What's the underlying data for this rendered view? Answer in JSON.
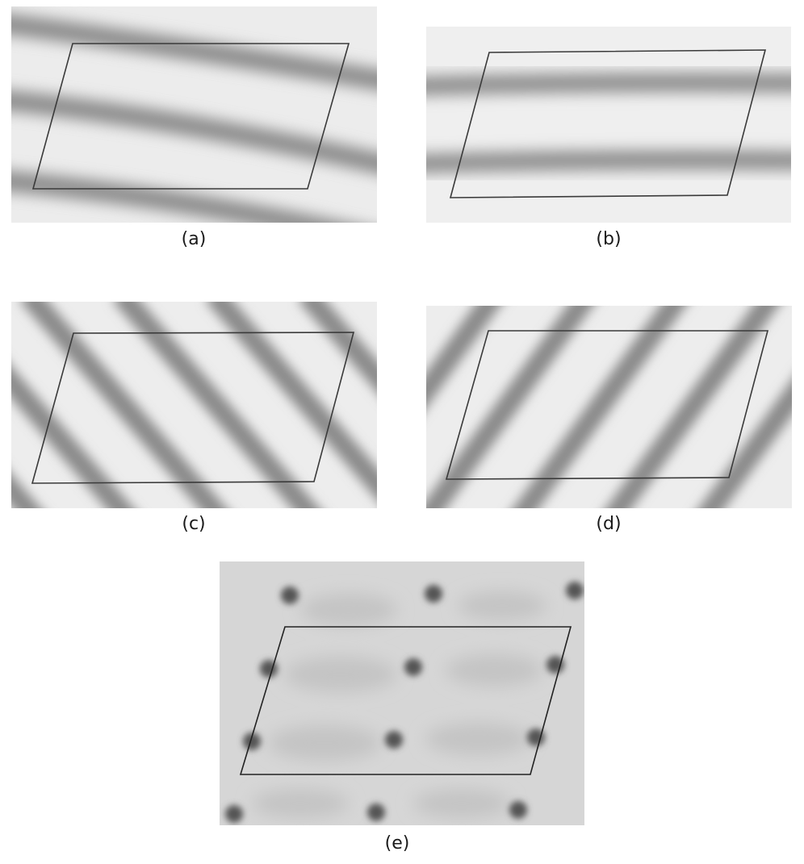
{
  "panels": [
    {
      "id": "a",
      "caption": "(a)",
      "pattern": "wavy fringes tilted slightly down to the right"
    },
    {
      "id": "b",
      "caption": "(b)",
      "pattern": "horizontal fringes"
    },
    {
      "id": "c",
      "caption": "(c)",
      "pattern": "diagonal fringes descending to the right"
    },
    {
      "id": "d",
      "caption": "(d)",
      "pattern": "diagonal fringes ascending to the right"
    },
    {
      "id": "e",
      "caption": "(e)",
      "pattern": "lattice of dark spots"
    }
  ],
  "colors": {
    "background": "#ffffff",
    "fringe_light": "#eeeeee",
    "fringe_dark": "#8a8a8a",
    "outline": "#3a3a3a"
  }
}
